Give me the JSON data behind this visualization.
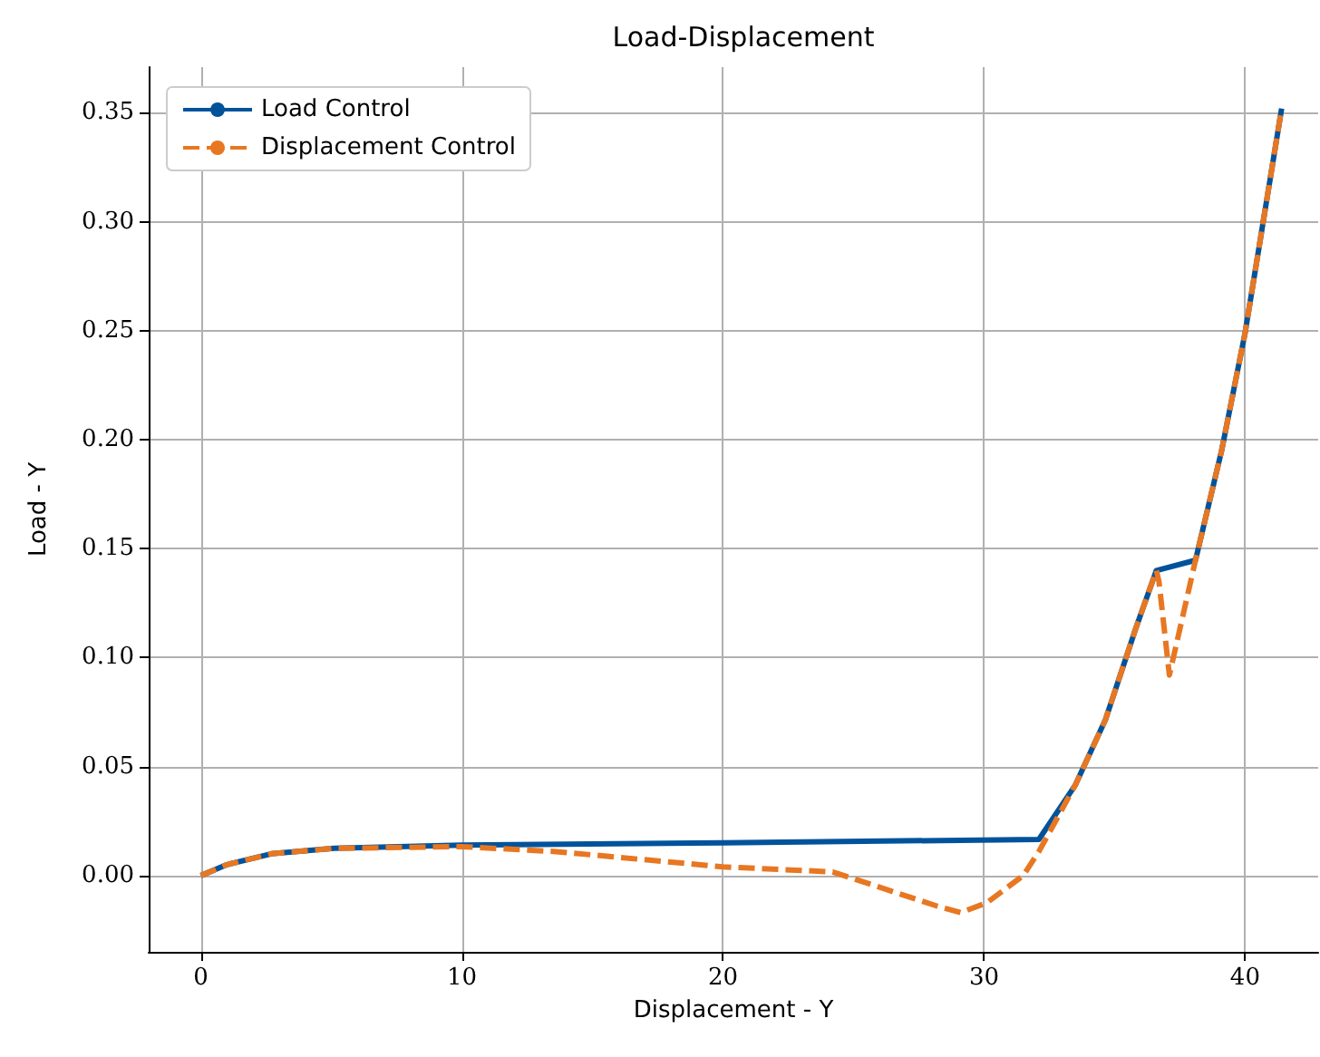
{
  "chart_data": {
    "type": "line",
    "title": "Load-Displacement",
    "xlabel": "Displacement - Y",
    "ylabel": "Load - Y",
    "xlim": [
      -2,
      42.8
    ],
    "ylim": [
      -0.035,
      0.371
    ],
    "xticks": [
      0,
      10,
      20,
      30,
      40
    ],
    "yticks": [
      {
        "value": 0,
        "label": "0.00"
      },
      {
        "value": 0.05,
        "label": "0.05"
      },
      {
        "value": 0.1,
        "label": "0.10"
      },
      {
        "value": 0.15,
        "label": "0.15"
      },
      {
        "value": 0.2,
        "label": "0.20"
      },
      {
        "value": 0.25,
        "label": "0.25"
      },
      {
        "value": 0.3,
        "label": "0.30"
      },
      {
        "value": 0.35,
        "label": "0.35"
      }
    ],
    "grid": true,
    "legend": "top left",
    "series": [
      {
        "name": "Load Control",
        "color": "#00539b",
        "line_style": "solid",
        "x": [
          0,
          1,
          2.7,
          5.1,
          10,
          20,
          32.1,
          33.5,
          34.65,
          35.8,
          36.6,
          38.1,
          39.1,
          40,
          41.4
        ],
        "values": [
          0,
          0.005,
          0.01,
          0.0125,
          0.014,
          0.015,
          0.0166,
          0.0416,
          0.0715,
          0.113,
          0.14,
          0.1447,
          0.195,
          0.249,
          0.352
        ]
      },
      {
        "name": "Displacement Control",
        "color": "#e87722",
        "line_style": "dashed",
        "x": [
          0,
          1,
          2.7,
          5.1,
          10,
          13.6,
          20,
          24.2,
          28.2,
          29.1,
          30.1,
          31.5,
          32.1,
          33.5,
          34.65,
          35.8,
          36.6,
          36.7,
          37.1,
          38.1,
          39.1,
          40,
          41.4
        ],
        "values": [
          0,
          0.005,
          0.01,
          0.0125,
          0.0133,
          0.011,
          0.004,
          0.0017,
          -0.014,
          -0.017,
          -0.0125,
          0,
          0.011,
          0.0416,
          0.0715,
          0.113,
          0.14,
          0.135,
          0.092,
          0.1447,
          0.195,
          0.249,
          0.352
        ]
      }
    ]
  }
}
